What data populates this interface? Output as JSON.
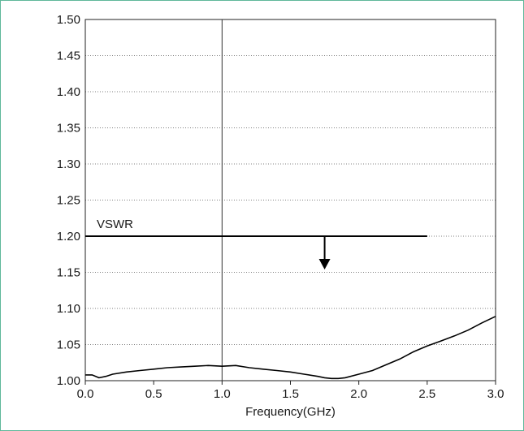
{
  "chart_data": {
    "type": "line",
    "title": "",
    "xlabel": "Frequency(GHz)",
    "ylabel": "",
    "xlim": [
      0.0,
      3.0
    ],
    "ylim": [
      1.0,
      1.5
    ],
    "x_ticks": [
      "0.0",
      "0.5",
      "1.0",
      "1.5",
      "2.0",
      "2.5",
      "3.0"
    ],
    "y_ticks": [
      "1.00",
      "1.05",
      "1.10",
      "1.15",
      "1.20",
      "1.25",
      "1.30",
      "1.35",
      "1.40",
      "1.45",
      "1.50"
    ],
    "grid": "horizontal dotted",
    "series": [
      {
        "x": [
          0.0,
          0.05,
          0.1,
          0.15,
          0.2,
          0.3,
          0.4,
          0.5,
          0.6,
          0.7,
          0.8,
          0.9,
          1.0,
          1.1,
          1.2,
          1.3,
          1.4,
          1.5,
          1.6,
          1.7,
          1.75,
          1.8,
          1.85,
          1.9,
          2.0,
          2.1,
          2.2,
          2.3,
          2.4,
          2.5,
          2.6,
          2.7,
          2.8,
          2.9,
          3.0
        ],
        "y": [
          1.008,
          1.008,
          1.004,
          1.006,
          1.009,
          1.012,
          1.014,
          1.016,
          1.018,
          1.019,
          1.02,
          1.021,
          1.02,
          1.021,
          1.018,
          1.016,
          1.014,
          1.012,
          1.009,
          1.006,
          1.004,
          1.003,
          1.003,
          1.004,
          1.009,
          1.014,
          1.022,
          1.03,
          1.04,
          1.048,
          1.055,
          1.062,
          1.07,
          1.08,
          1.089
        ],
        "color": "#000000"
      }
    ],
    "limit_line": {
      "label": "VSWR",
      "y": 1.2,
      "x_start": 0.0,
      "x_end": 2.5,
      "arrow_x": 1.75
    },
    "vertical_marker": {
      "x": 1.0
    }
  }
}
